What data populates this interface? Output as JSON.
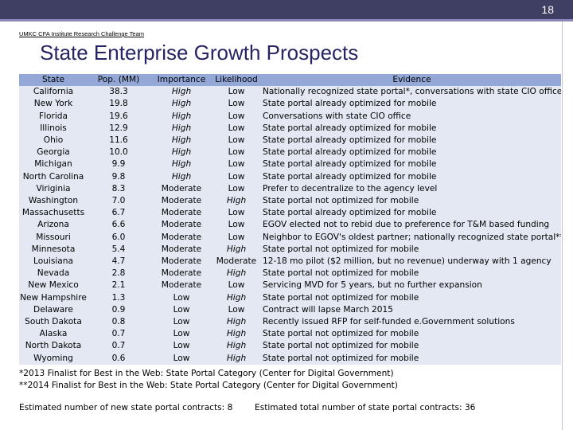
{
  "slide_number": "18",
  "header_label": "UMKC CFA Institute Research Challenge Team",
  "title": "State Enterprise Growth Prospects",
  "table": {
    "headers": [
      "State",
      "Pop. (MM)",
      "Importance",
      "Likelihood",
      "Evidence"
    ],
    "rows": [
      {
        "state": "California",
        "pop": "38.3",
        "importance": "High",
        "likelihood": "Low",
        "evidence": "Nationally recognized state portal*, conversations with state CIO office"
      },
      {
        "state": "New York",
        "pop": "19.8",
        "importance": "High",
        "likelihood": "Low",
        "evidence": "State portal already optimized for mobile"
      },
      {
        "state": "Florida",
        "pop": "19.6",
        "importance": "High",
        "likelihood": "Low",
        "evidence": "Conversations with state CIO office"
      },
      {
        "state": "Illinois",
        "pop": "12.9",
        "importance": "High",
        "likelihood": "Low",
        "evidence": "State portal already optimized for mobile"
      },
      {
        "state": "Ohio",
        "pop": "11.6",
        "importance": "High",
        "likelihood": "Low",
        "evidence": "State portal already optimized for mobile"
      },
      {
        "state": "Georgia",
        "pop": "10.0",
        "importance": "High",
        "likelihood": "Low",
        "evidence": "State portal already optimized for mobile"
      },
      {
        "state": "Michigan",
        "pop": "9.9",
        "importance": "High",
        "likelihood": "Low",
        "evidence": "State portal already optimized for mobile"
      },
      {
        "state": "North Carolina",
        "pop": "9.8",
        "importance": "High",
        "likelihood": "Low",
        "evidence": "State portal already optimized for mobile"
      },
      {
        "state": "Viriginia",
        "pop": "8.3",
        "importance": "Moderate",
        "likelihood": "Low",
        "evidence": "Prefer to decentralize to the agency level"
      },
      {
        "state": "Washington",
        "pop": "7.0",
        "importance": "Moderate",
        "likelihood": "High",
        "evidence": "State portal not optimized for mobile"
      },
      {
        "state": "Massachusetts",
        "pop": "6.7",
        "importance": "Moderate",
        "likelihood": "Low",
        "evidence": "State portal already optimized for mobile"
      },
      {
        "state": "Arizona",
        "pop": "6.6",
        "importance": "Moderate",
        "likelihood": "Low",
        "evidence": "EGOV elected not to rebid due to preference for T&M based funding"
      },
      {
        "state": "Missouri",
        "pop": "6.0",
        "importance": "Moderate",
        "likelihood": "Low",
        "evidence": "Neighbor to EGOV's oldest partner; nationally recognized state portal**"
      },
      {
        "state": "Minnesota",
        "pop": "5.4",
        "importance": "Moderate",
        "likelihood": "High",
        "evidence": "State portal not optimized for mobile"
      },
      {
        "state": "Louisiana",
        "pop": "4.7",
        "importance": "Moderate",
        "likelihood": "Moderate",
        "evidence": "12-18 mo pilot ($2 million, but no revenue) underway with 1 agency"
      },
      {
        "state": "Nevada",
        "pop": "2.8",
        "importance": "Moderate",
        "likelihood": "High",
        "evidence": "State portal not optimized for mobile"
      },
      {
        "state": "New Mexico",
        "pop": "2.1",
        "importance": "Moderate",
        "likelihood": "Low",
        "evidence": "Servicing MVD for 5 years, but no further expansion"
      },
      {
        "state": "New Hampshire",
        "pop": "1.3",
        "importance": "Low",
        "likelihood": "High",
        "evidence": "State portal not optimized for mobile"
      },
      {
        "state": "Delaware",
        "pop": "0.9",
        "importance": "Low",
        "likelihood": "Low",
        "evidence": "Contract will lapse March 2015"
      },
      {
        "state": "South Dakota",
        "pop": "0.8",
        "importance": "Low",
        "likelihood": "High",
        "evidence": "Recently issued RFP for self-funded e.Government solutions"
      },
      {
        "state": "Alaska",
        "pop": "0.7",
        "importance": "Low",
        "likelihood": "High",
        "evidence": "State portal not optimized for mobile"
      },
      {
        "state": "North Dakota",
        "pop": "0.7",
        "importance": "Low",
        "likelihood": "High",
        "evidence": "State portal not optimized for mobile"
      },
      {
        "state": "Wyoming",
        "pop": "0.6",
        "importance": "Low",
        "likelihood": "High",
        "evidence": "State portal not optimized for mobile"
      }
    ]
  },
  "notes": {
    "note1": "*2013 Finalist for Best in the Web: State Portal Category (Center for Digital Government)",
    "note2": "**2014 Finalist for Best in the Web: State Portal Category (Center for Digital Government)"
  },
  "footer": {
    "left": "Estimated number of new state portal contracts: 8",
    "right": "Estimated total number of state portal contracts: 36"
  },
  "colors": {
    "topbar": "#3f3e63",
    "title": "#262463",
    "header_row": "#93a8d6",
    "body_row": "#e3e8f3"
  }
}
